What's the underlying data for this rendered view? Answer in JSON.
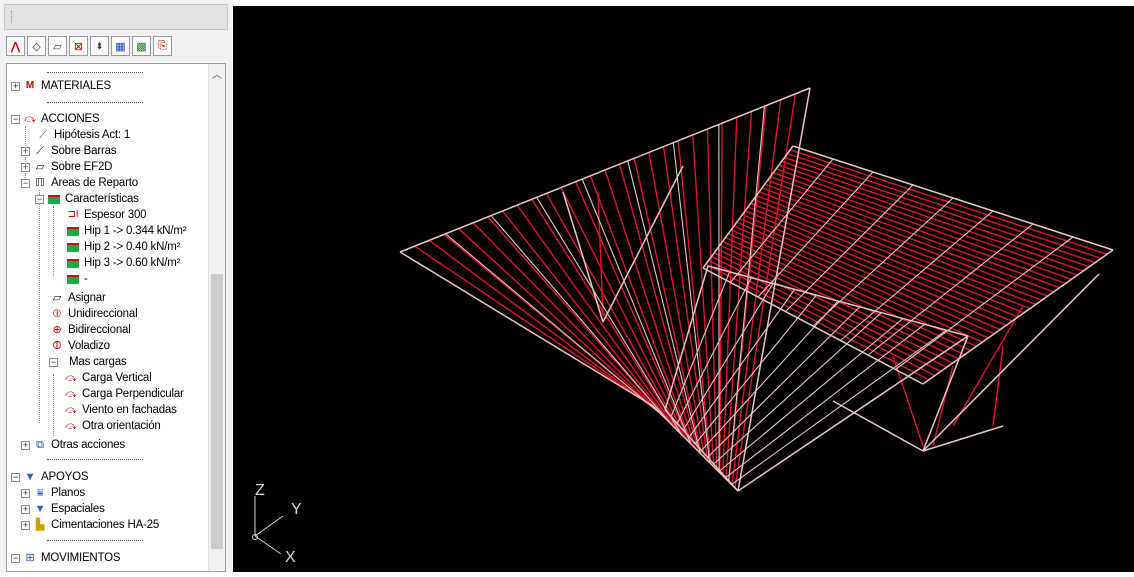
{
  "toolbar": {
    "icons": [
      "bars-icon",
      "shape-icon",
      "face-icon",
      "delete-icon",
      "spinner-icon",
      "table-icon",
      "color-icon",
      "export-icon"
    ]
  },
  "tree": {
    "materiales": "MATERIALES",
    "acciones": "ACCIONES",
    "hipotesis": "Hipótesis Act: 1",
    "sobre_barras": "Sobre Barras",
    "sobre_ef2d": "Sobre EF2D",
    "areas": "Areas de Reparto",
    "caracteristicas": "Características",
    "espesor": "Espesor 300",
    "hip1": "Hip 1 -> 0.344 kN/m²",
    "hip2": "Hip 2 -> 0.40 kN/m²",
    "hip3": "Hip 3 -> 0.60 kN/m²",
    "dash": "-",
    "asignar": "Asignar",
    "unidireccional": "Unidireccional",
    "bidireccional": "Bidireccional",
    "voladizo": "Voladizo",
    "mas_cargas": "Mas cargas",
    "carga_vertical": "Carga Vertical",
    "carga_perpendicular": "Carga Perpendicular",
    "viento": "Viento en fachadas",
    "otra_orientacion": "Otra orientación",
    "otras_acciones": "Otras acciones",
    "apoyos": "APOYOS",
    "planos": "Planos",
    "espaciales": "Espaciales",
    "cimentaciones": "Cimentaciones HA-25",
    "movimientos": "MOVIMIENTOS"
  },
  "axes": {
    "z": "Z",
    "y": "Y",
    "x": "X"
  },
  "colors": {
    "mesh": "#e8c6c6",
    "load": "#e0142a",
    "background": "#000000"
  }
}
